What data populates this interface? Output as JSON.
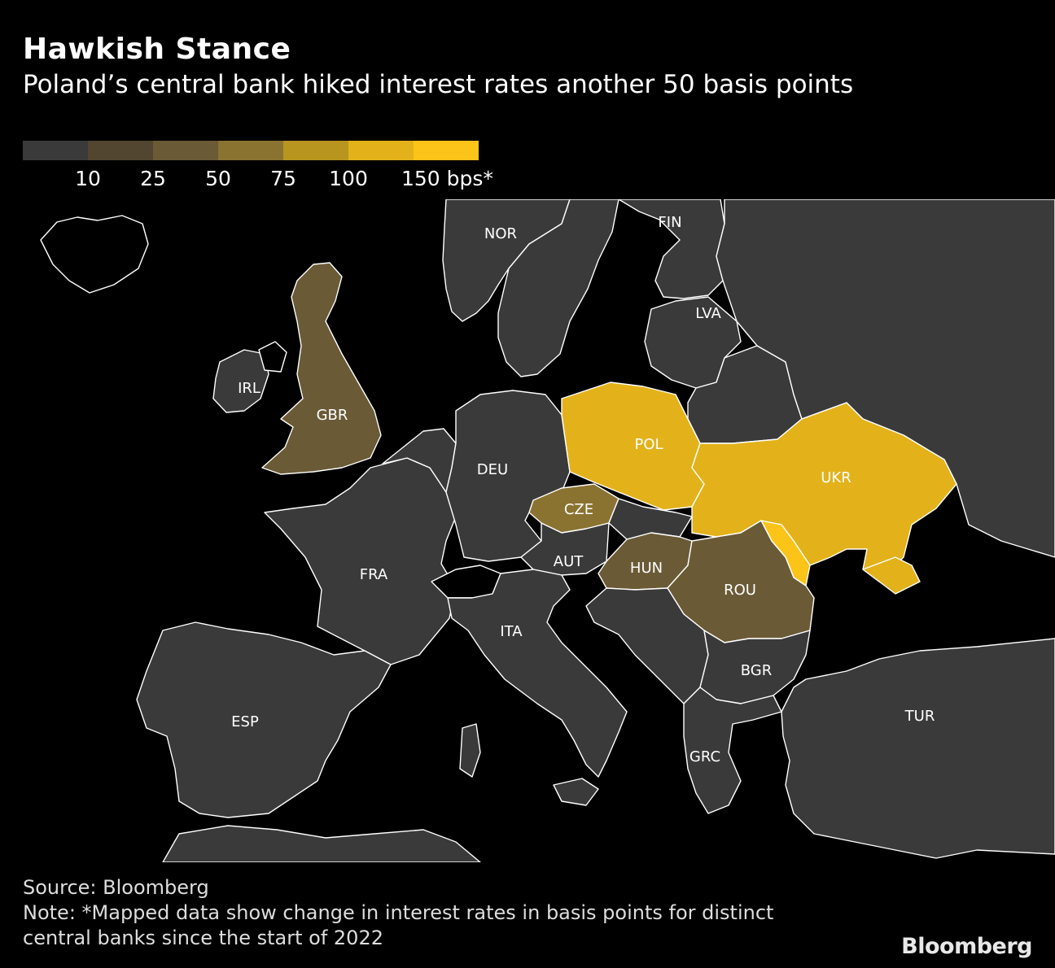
{
  "header": {
    "title": "Hawkish Stance",
    "subtitle": "Poland’s central bank hiked interest rates another 50 basis points"
  },
  "legend": {
    "swatches": [
      "#3a3a3a",
      "#524630",
      "#6a5a36",
      "#8a7330",
      "#b8951f",
      "#e3b21a",
      "#fcc419"
    ],
    "labels": [
      "10",
      "25",
      "50",
      "75",
      "100",
      "150 bps*"
    ]
  },
  "colors": {
    "background": "#000000",
    "land_default": "#3a3a3a",
    "border": "#ffffff"
  },
  "map": {
    "countries": [
      {
        "code": "NOR",
        "bin": 0
      },
      {
        "code": "FIN",
        "bin": 0
      },
      {
        "code": "LVA",
        "bin": 0
      },
      {
        "code": "IRL",
        "bin": 0
      },
      {
        "code": "GBR",
        "bin": 2
      },
      {
        "code": "DEU",
        "bin": 0
      },
      {
        "code": "POL",
        "bin": 5
      },
      {
        "code": "UKR",
        "bin": 5
      },
      {
        "code": "MDA",
        "bin": 6
      },
      {
        "code": "CZE",
        "bin": 3
      },
      {
        "code": "AUT",
        "bin": 0
      },
      {
        "code": "HUN",
        "bin": 2
      },
      {
        "code": "ROU",
        "bin": 2
      },
      {
        "code": "FRA",
        "bin": 0
      },
      {
        "code": "ITA",
        "bin": 0
      },
      {
        "code": "BGR",
        "bin": 0
      },
      {
        "code": "ESP",
        "bin": 0
      },
      {
        "code": "GRC",
        "bin": 0
      },
      {
        "code": "TUR",
        "bin": 0
      }
    ],
    "labels": [
      "NOR",
      "FIN",
      "LVA",
      "IRL",
      "GBR",
      "DEU",
      "POL",
      "UKR",
      "CZE",
      "AUT",
      "HUN",
      "ROU",
      "FRA",
      "ITA",
      "BGR",
      "ESP",
      "GRC",
      "TUR"
    ]
  },
  "footer": {
    "source": "Source: Bloomberg",
    "note_line1": "Note: *Mapped data show change in interest rates in basis points for distinct",
    "note_line2": "central banks since the start of 2022",
    "brand": "Bloomberg"
  }
}
